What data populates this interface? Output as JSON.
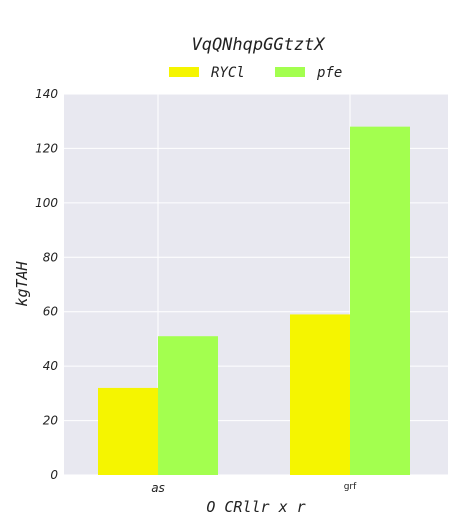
{
  "chart_data": {
    "type": "bar",
    "title": "VqQNhqpGGtztX",
    "xlabel": "O CRllr x  r",
    "ylabel": "kgTAH",
    "categories": [
      "as",
      "grf"
    ],
    "series": [
      {
        "name": "RYCl",
        "color": "#f5f500",
        "values": [
          32,
          59
        ]
      },
      {
        "name": "pfe",
        "color": "#a3ff4f",
        "values": [
          51,
          128
        ]
      }
    ],
    "ylim": [
      0,
      140
    ],
    "yticks": [
      0,
      20,
      40,
      60,
      80,
      100,
      120,
      140
    ],
    "grid": true,
    "legend_position": "top-center",
    "background_color": "#e8e8f0"
  }
}
